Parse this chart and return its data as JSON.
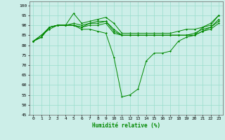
{
  "xlabel": "Humidité relative (%)",
  "background_color": "#cceee8",
  "grid_color": "#99ddcc",
  "line_color": "#008800",
  "xlim": [
    -0.5,
    23.5
  ],
  "ylim": [
    45,
    102
  ],
  "yticks": [
    45,
    50,
    55,
    60,
    65,
    70,
    75,
    80,
    85,
    90,
    95,
    100
  ],
  "xticks": [
    0,
    1,
    2,
    3,
    4,
    5,
    6,
    7,
    8,
    9,
    10,
    11,
    12,
    13,
    14,
    15,
    16,
    17,
    18,
    19,
    20,
    21,
    22,
    23
  ],
  "line1": [
    82,
    85,
    89,
    90,
    90,
    96,
    91,
    92,
    93,
    94,
    91,
    86,
    86,
    86,
    86,
    86,
    86,
    86,
    87,
    88,
    88,
    89,
    90,
    95
  ],
  "line2": [
    82,
    84,
    89,
    90,
    90,
    91,
    90,
    91,
    92,
    92,
    88,
    85,
    85,
    85,
    85,
    85,
    85,
    85,
    85,
    85,
    86,
    88,
    89,
    93
  ],
  "line3": [
    82,
    84,
    89,
    90,
    90,
    90,
    89,
    91,
    91,
    92,
    87,
    85,
    85,
    85,
    85,
    85,
    85,
    85,
    85,
    85,
    85,
    87,
    89,
    92
  ],
  "line4": [
    82,
    84,
    89,
    90,
    90,
    90,
    89,
    90,
    90,
    91,
    86,
    85,
    85,
    85,
    85,
    85,
    85,
    85,
    85,
    85,
    85,
    87,
    88,
    91
  ],
  "line5": [
    82,
    85,
    88,
    90,
    90,
    90,
    88,
    88,
    87,
    86,
    74,
    54,
    55,
    58,
    72,
    76,
    76,
    77,
    82,
    84,
    85,
    89,
    91,
    95
  ]
}
